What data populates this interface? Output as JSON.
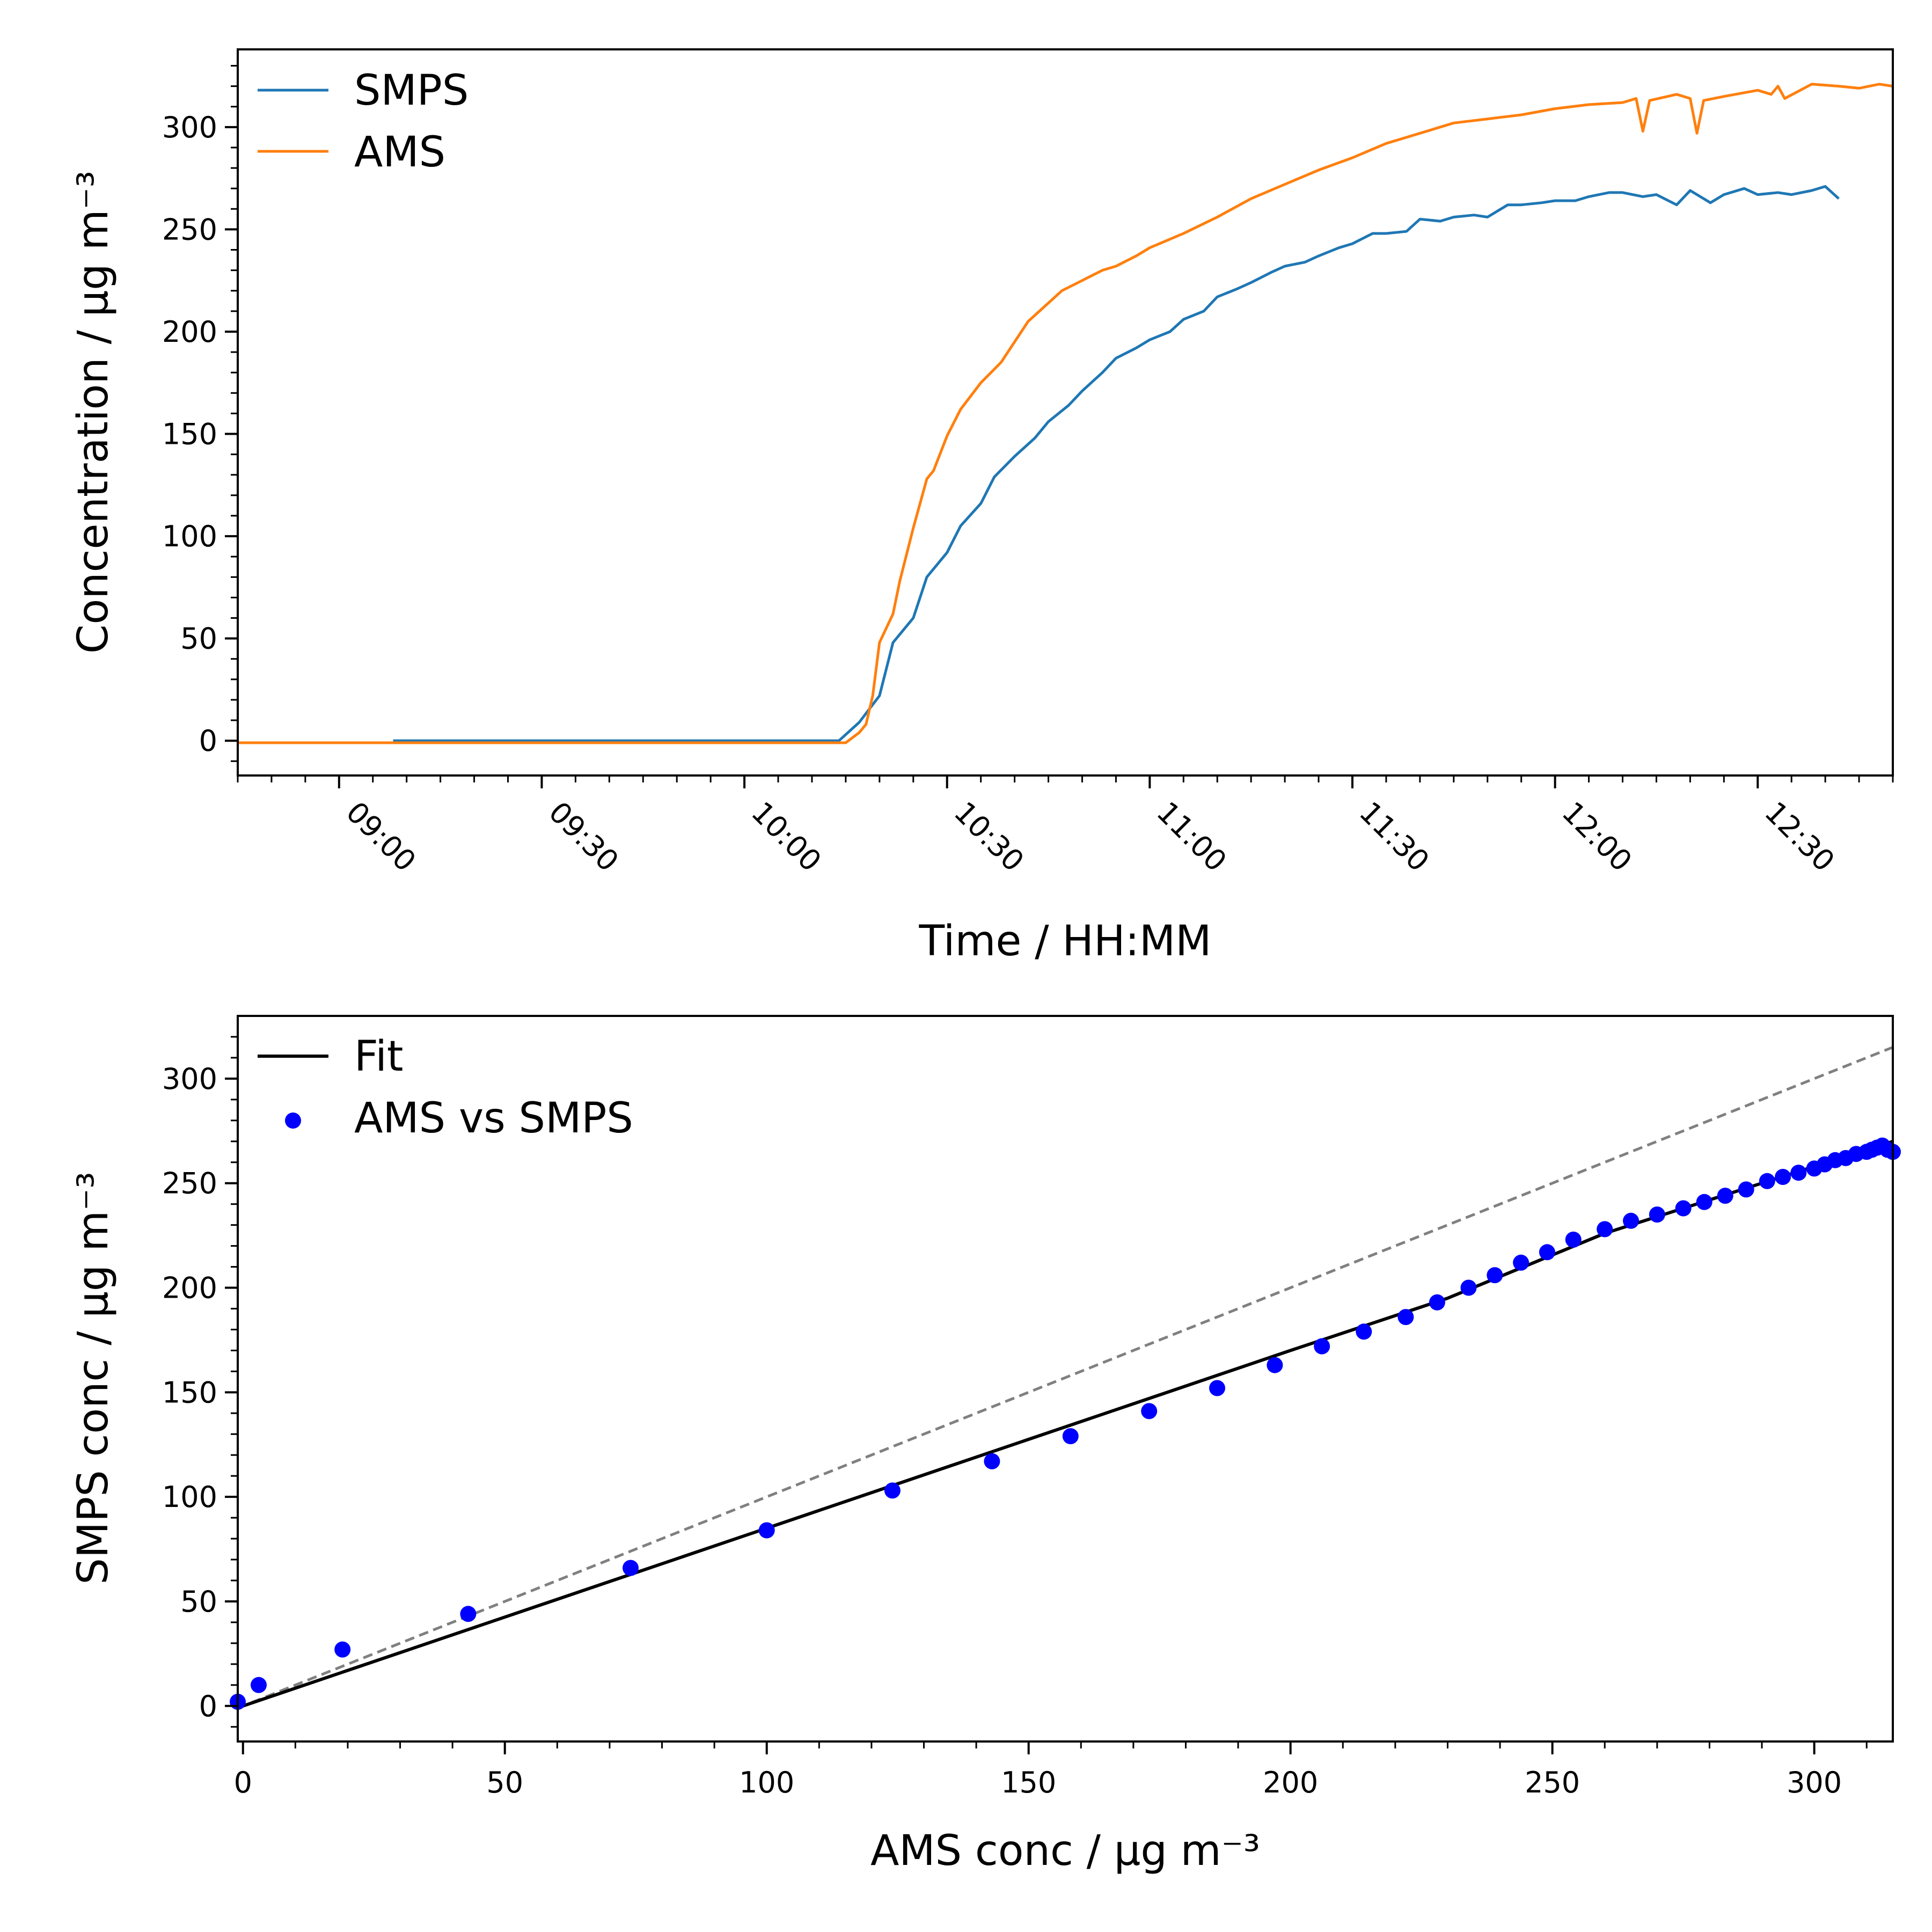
{
  "colors": {
    "smps": "#1f77b4",
    "ams": "#ff7f0e",
    "fit": "#000000",
    "scatter": "#0000ff",
    "one_to_one": "#808080"
  },
  "chart_data": [
    {
      "type": "line",
      "xlabel": "Time / HH:MM",
      "ylabel": "Concentration / μg m⁻³",
      "xlim": [
        "08:45",
        "12:50"
      ],
      "ylim": [
        -17,
        338
      ],
      "x_ticks": [
        "09:00",
        "09:30",
        "10:00",
        "10:30",
        "11:00",
        "11:30",
        "12:00",
        "12:30"
      ],
      "y_ticks": [
        0,
        50,
        100,
        150,
        200,
        250,
        300
      ],
      "grid": false,
      "legend": "top-left",
      "series": [
        {
          "name": "SMPS",
          "color_key": "smps",
          "x": [
            "09:08",
            "10:14",
            "10:17",
            "10:20",
            "10:22",
            "10:25",
            "10:27",
            "10:30",
            "10:32",
            "10:35",
            "10:37",
            "10:40",
            "10:43",
            "10:45",
            "10:48",
            "10:50",
            "10:53",
            "10:55",
            "10:58",
            "11:00",
            "11:03",
            "11:05",
            "11:08",
            "11:10",
            "11:13",
            "11:15",
            "11:18",
            "11:20",
            "11:23",
            "11:25",
            "11:28",
            "11:30",
            "11:33",
            "11:35",
            "11:38",
            "11:40",
            "11:43",
            "11:45",
            "11:48",
            "11:50",
            "11:53",
            "11:55",
            "11:58",
            "12:00",
            "12:03",
            "12:05",
            "12:08",
            "12:10",
            "12:13",
            "12:15",
            "12:18",
            "12:20",
            "12:23",
            "12:25",
            "12:28",
            "12:30",
            "12:33",
            "12:35",
            "12:38",
            "12:40",
            "12:42"
          ],
          "values": [
            0,
            0,
            9,
            22,
            48,
            60,
            80,
            92,
            105,
            116,
            129,
            139,
            148,
            156,
            164,
            171,
            180,
            187,
            192,
            196,
            200,
            206,
            210,
            217,
            221,
            224,
            229,
            232,
            234,
            237,
            241,
            243,
            248,
            248,
            249,
            255,
            254,
            256,
            257,
            256,
            262,
            262,
            263,
            264,
            264,
            266,
            268,
            268,
            266,
            267,
            262,
            269,
            263,
            267,
            270,
            267,
            268,
            267,
            269,
            271,
            265
          ]
        },
        {
          "name": "AMS",
          "color_key": "ams",
          "x": [
            "08:45",
            "10:15",
            "10:17",
            "10:18",
            "10:19",
            "10:20",
            "10:22",
            "10:23",
            "10:25",
            "10:27",
            "10:28",
            "10:30",
            "10:32",
            "10:35",
            "10:38",
            "10:40",
            "10:42",
            "10:45",
            "10:47",
            "10:50",
            "10:53",
            "10:55",
            "10:58",
            "11:00",
            "11:05",
            "11:10",
            "11:15",
            "11:20",
            "11:25",
            "11:30",
            "11:35",
            "11:40",
            "11:45",
            "11:50",
            "11:55",
            "12:00",
            "12:05",
            "12:10",
            "12:12",
            "12:13",
            "12:14",
            "12:18",
            "12:20",
            "12:21",
            "12:22",
            "12:25",
            "12:30",
            "12:32",
            "12:33",
            "12:34",
            "12:38",
            "12:42",
            "12:45",
            "12:48",
            "12:50"
          ],
          "values": [
            -1,
            -1,
            4,
            8,
            22,
            48,
            62,
            78,
            104,
            128,
            132,
            149,
            162,
            175,
            185,
            195,
            205,
            214,
            220,
            225,
            230,
            232,
            237,
            241,
            248,
            256,
            265,
            272,
            279,
            285,
            292,
            297,
            302,
            304,
            306,
            309,
            311,
            312,
            314,
            298,
            313,
            316,
            314,
            297,
            313,
            315,
            318,
            316,
            320,
            314,
            321,
            320,
            319,
            321,
            320
          ]
        }
      ]
    },
    {
      "type": "scatter",
      "xlabel": "AMS conc / μg m⁻³",
      "ylabel": "SMPS conc / μg m⁻³",
      "xlim": [
        -1,
        315
      ],
      "ylim": [
        -17,
        330
      ],
      "x_ticks": [
        0,
        50,
        100,
        150,
        200,
        250,
        300
      ],
      "y_ticks": [
        0,
        50,
        100,
        150,
        200,
        250,
        300
      ],
      "grid": false,
      "legend": "top-left",
      "series": [
        {
          "name": "AMS vs SMPS",
          "color_key": "scatter",
          "points": [
            [
              -1,
              2
            ],
            [
              3,
              10
            ],
            [
              19,
              27
            ],
            [
              43,
              44
            ],
            [
              74,
              66
            ],
            [
              100,
              84
            ],
            [
              124,
              103
            ],
            [
              143,
              117
            ],
            [
              158,
              129
            ],
            [
              173,
              141
            ],
            [
              186,
              152
            ],
            [
              197,
              163
            ],
            [
              206,
              172
            ],
            [
              214,
              179
            ],
            [
              222,
              186
            ],
            [
              228,
              193
            ],
            [
              234,
              200
            ],
            [
              239,
              206
            ],
            [
              244,
              212
            ],
            [
              249,
              217
            ],
            [
              254,
              223
            ],
            [
              260,
              228
            ],
            [
              265,
              232
            ],
            [
              270,
              235
            ],
            [
              275,
              238
            ],
            [
              279,
              241
            ],
            [
              283,
              244
            ],
            [
              287,
              247
            ],
            [
              291,
              251
            ],
            [
              294,
              253
            ],
            [
              297,
              255
            ],
            [
              300,
              257
            ],
            [
              302,
              259
            ],
            [
              304,
              261
            ],
            [
              306,
              262
            ],
            [
              308,
              264
            ],
            [
              310,
              265
            ],
            [
              311,
              266
            ],
            [
              312,
              267
            ],
            [
              313,
              268
            ],
            [
              314,
              266
            ],
            [
              315,
              265
            ]
          ]
        },
        {
          "name": "Fit",
          "color_key": "fit",
          "line": [
            [
              0,
              0
            ],
            [
              100,
              85
            ],
            [
              200,
              170
            ],
            [
              230,
              195
            ],
            [
              260,
              226
            ],
            [
              290,
              250
            ],
            [
              315,
              270
            ]
          ]
        },
        {
          "color_key": "one_to_one",
          "dashed": true,
          "line": [
            [
              -1,
              -1
            ],
            [
              315,
              315
            ]
          ]
        }
      ]
    }
  ]
}
